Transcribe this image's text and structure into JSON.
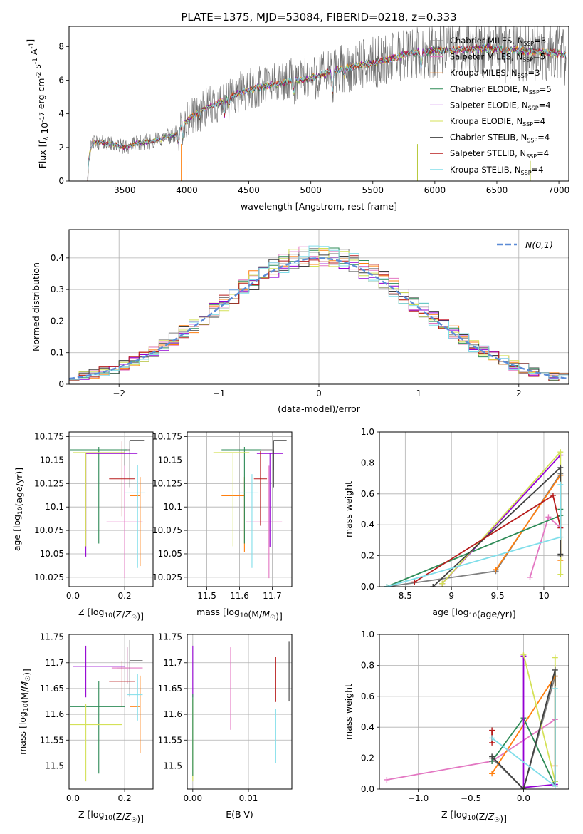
{
  "figure": {
    "title": "PLATE=1375, MJD=53084, FIBERID=0218, z=0.333"
  },
  "series_styles": [
    {
      "name": "Chabrier MILES",
      "nssp": "3",
      "color": "#7f7f7f"
    },
    {
      "name": "Salpeter MILES",
      "nssp": "5",
      "color": "#e377c2"
    },
    {
      "name": "Kroupa MILES",
      "nssp": "3",
      "color": "#ff7f0e"
    },
    {
      "name": "Chabrier ELODIE",
      "nssp": "5",
      "color": "#2e8b57"
    },
    {
      "name": "Salpeter ELODIE",
      "nssp": "4",
      "color": "#9400d3"
    },
    {
      "name": "Kroupa ELODIE",
      "nssp": "4",
      "color": "#d4e157"
    },
    {
      "name": "Chabrier STELIB",
      "nssp": "4",
      "color": "#404040"
    },
    {
      "name": "Salpeter STELIB",
      "nssp": "4",
      "color": "#b71c1c"
    },
    {
      "name": "Kroupa STELIB",
      "nssp": "4",
      "color": "#80deea"
    }
  ],
  "chart_data": [
    {
      "id": "spectrum",
      "type": "line",
      "xlabel": "wavelength [Angstrom, rest frame]",
      "ylabel": "Flux [f_λ 10^-17 erg cm^-2 s^-1 A^-1]",
      "xlim": [
        3050,
        7080
      ],
      "ylim": [
        0,
        9.2
      ],
      "xticks": [
        3500,
        4000,
        4500,
        5000,
        5500,
        6000,
        6500,
        7000
      ],
      "yticks": [
        0,
        2,
        4,
        6,
        8
      ],
      "grid": false,
      "legend": "right",
      "nodes": [
        [
          3200,
          0
        ],
        [
          3210,
          1.5
        ],
        [
          3240,
          2.3
        ],
        [
          3300,
          2.3
        ],
        [
          3400,
          2.2
        ],
        [
          3500,
          2.0
        ],
        [
          3600,
          2.25
        ],
        [
          3700,
          2.35
        ],
        [
          3800,
          2.5
        ],
        [
          3850,
          2.7
        ],
        [
          3900,
          2.7
        ],
        [
          3960,
          3.3
        ],
        [
          4050,
          3.9
        ],
        [
          4200,
          4.5
        ],
        [
          4300,
          4.8
        ],
        [
          4400,
          5.2
        ],
        [
          4600,
          5.6
        ],
        [
          4800,
          5.9
        ],
        [
          5000,
          6.1
        ],
        [
          5200,
          6.6
        ],
        [
          5400,
          6.9
        ],
        [
          5600,
          7.2
        ],
        [
          5800,
          7.6
        ],
        [
          6000,
          7.75
        ],
        [
          6200,
          7.8
        ],
        [
          6400,
          7.9
        ],
        [
          6600,
          7.8
        ],
        [
          6800,
          7.7
        ],
        [
          7000,
          7.6
        ],
        [
          7050,
          7.5
        ]
      ],
      "dips": [
        [
          3933,
          0.9
        ],
        [
          3968,
          0.7
        ],
        [
          4101,
          0.4
        ],
        [
          4304,
          0.9
        ],
        [
          4340,
          0.5
        ],
        [
          4861,
          0.7
        ],
        [
          5175,
          1.3
        ],
        [
          5270,
          0.5
        ],
        [
          5890,
          1.0
        ],
        [
          6563,
          0.6
        ]
      ],
      "observed_noise": 1.6
    },
    {
      "id": "residuals",
      "type": "histogram",
      "xlabel": "(data-model)/error",
      "ylabel": "Normed distribution",
      "xlim": [
        -2.5,
        2.5
      ],
      "ylim": [
        0,
        0.49
      ],
      "xticks": [
        -2,
        -1,
        0,
        1,
        2
      ],
      "yticks": [
        0.0,
        0.1,
        0.2,
        0.3,
        0.4
      ],
      "bin_width": 0.1,
      "grid": true,
      "legend": "top-right",
      "normal_curve": {
        "label": "N(0,1)",
        "mu": 0,
        "sigma": 1,
        "color": "#5b8bd6"
      }
    },
    {
      "id": "age_vs_Z",
      "type": "errorbar",
      "xlabel": "Z [log10(Z/Z☉)]",
      "ylabel": "age  [log10(age/yr)]",
      "xlim": [
        -0.015,
        0.31
      ],
      "ylim": [
        10.015,
        10.18
      ],
      "xticks": [
        0.0,
        0.2
      ],
      "xticklabels": [
        "0.0",
        "0.2"
      ],
      "yticks": [
        10.025,
        10.05,
        10.075,
        10.1,
        10.125,
        10.15,
        10.175
      ],
      "grid": true,
      "points": [
        {
          "series": 0,
          "x": 0.2,
          "y": 10.161,
          "xerr": [
            0.0,
            0.02
          ],
          "yerr": [
            0.022,
            0.0
          ]
        },
        {
          "series": 1,
          "x": 0.2,
          "y": 10.084,
          "xerr": [
            0.07,
            0.07
          ],
          "yerr": [
            0.06,
            0.06
          ]
        },
        {
          "series": 2,
          "x": 0.26,
          "y": 10.112,
          "xerr": [
            0.04,
            0.0
          ],
          "yerr": [
            0.075,
            0.02
          ]
        },
        {
          "series": 3,
          "x": 0.1,
          "y": 10.161,
          "xerr": [
            0.11,
            0.11
          ],
          "yerr": [
            0.1,
            0.003
          ]
        },
        {
          "series": 4,
          "x": 0.05,
          "y": 10.157,
          "xerr": [
            0.0,
            0.2
          ],
          "yerr": [
            0.11,
            0.0
          ]
        },
        {
          "series": 5,
          "x": 0.05,
          "y": 10.158,
          "xerr": [
            0.05,
            0.15
          ],
          "yerr": [
            0.1,
            0.0
          ]
        },
        {
          "series": 6,
          "x": 0.22,
          "y": 10.171,
          "xerr": [
            0.0,
            0.055
          ],
          "yerr": [
            0.05,
            0.0
          ]
        },
        {
          "series": 7,
          "x": 0.19,
          "y": 10.13,
          "xerr": [
            0.05,
            0.05
          ],
          "yerr": [
            0.04,
            0.04
          ]
        },
        {
          "series": 8,
          "x": 0.25,
          "y": 10.115,
          "xerr": [
            0.05,
            0.03
          ],
          "yerr": [
            0.08,
            0.03
          ]
        }
      ]
    },
    {
      "id": "age_vs_mass",
      "type": "errorbar",
      "xlabel": "mass [log10(M/M☉)]",
      "ylabel": "",
      "xlim": [
        11.44,
        11.76
      ],
      "ylim": [
        10.015,
        10.18
      ],
      "xticks": [
        11.5,
        11.6,
        11.7
      ],
      "yticks": [
        10.025,
        10.05,
        10.075,
        10.1,
        10.125,
        10.15,
        10.175
      ],
      "grid": true,
      "points": [
        {
          "series": 0,
          "x": 11.704,
          "y": 10.161,
          "xerr": [
            0.07,
            0.0
          ],
          "yerr": [
            0.022,
            0.0
          ]
        },
        {
          "series": 1,
          "x": 11.69,
          "y": 10.084,
          "xerr": [
            0.07,
            0.04
          ],
          "yerr": [
            0.06,
            0.06
          ]
        },
        {
          "series": 2,
          "x": 11.615,
          "y": 10.112,
          "xerr": [
            0.07,
            0.0
          ],
          "yerr": [
            0.06,
            0.02
          ]
        },
        {
          "series": 3,
          "x": 11.615,
          "y": 10.161,
          "xerr": [
            0.07,
            0.05
          ],
          "yerr": [
            0.1,
            0.003
          ]
        },
        {
          "series": 4,
          "x": 11.693,
          "y": 10.157,
          "xerr": [
            0.04,
            0.04
          ],
          "yerr": [
            0.1,
            0.0
          ]
        },
        {
          "series": 5,
          "x": 11.58,
          "y": 10.158,
          "xerr": [
            0.06,
            0.05
          ],
          "yerr": [
            0.1,
            0.0
          ]
        },
        {
          "series": 6,
          "x": 11.704,
          "y": 10.171,
          "xerr": [
            0.0,
            0.04
          ],
          "yerr": [
            0.05,
            0.0
          ]
        },
        {
          "series": 7,
          "x": 11.664,
          "y": 10.13,
          "xerr": [
            0.02,
            0.02
          ],
          "yerr": [
            0.05,
            0.03
          ]
        },
        {
          "series": 8,
          "x": 11.638,
          "y": 10.115,
          "xerr": [
            0.04,
            0.02
          ],
          "yerr": [
            0.08,
            0.02
          ]
        }
      ]
    },
    {
      "id": "weight_vs_age",
      "type": "line",
      "xlabel": "age  [log10(age/yr)]",
      "ylabel": "mass weight",
      "xlim": [
        8.22,
        10.27
      ],
      "ylim": [
        0,
        1.0
      ],
      "xticks": [
        8.5,
        9.0,
        9.5,
        10.0
      ],
      "yticks": [
        0.0,
        0.2,
        0.4,
        0.6,
        0.8,
        1.0
      ],
      "grid": true,
      "lines": [
        {
          "series": 0,
          "points": [
            [
              8.3,
              0.0
            ],
            [
              9.48,
              0.1
            ],
            [
              10.18,
              0.73
            ],
            [
              10.18,
              0.2
            ]
          ]
        },
        {
          "series": 1,
          "points": [
            [
              9.85,
              0.06
            ],
            [
              10.05,
              0.45
            ],
            [
              10.18,
              0.38
            ]
          ]
        },
        {
          "series": 2,
          "points": [
            [
              9.48,
              0.11
            ],
            [
              10.18,
              0.72
            ],
            [
              10.18,
              0.17
            ]
          ]
        },
        {
          "series": 3,
          "points": [
            [
              8.3,
              0.0
            ],
            [
              10.18,
              0.46
            ],
            [
              10.18,
              0.5
            ]
          ]
        },
        {
          "series": 4,
          "points": [
            [
              8.9,
              0.02
            ],
            [
              10.18,
              0.85
            ]
          ]
        },
        {
          "series": 5,
          "points": [
            [
              8.9,
              0.02
            ],
            [
              10.18,
              0.87
            ],
            [
              10.18,
              0.08
            ]
          ]
        },
        {
          "series": 6,
          "points": [
            [
              8.8,
              0.0
            ],
            [
              10.18,
              0.77
            ],
            [
              10.18,
              0.21
            ]
          ]
        },
        {
          "series": 7,
          "points": [
            [
              8.6,
              0.03
            ],
            [
              10.1,
              0.59
            ],
            [
              10.18,
              0.38
            ]
          ]
        },
        {
          "series": 8,
          "points": [
            [
              8.3,
              0.0
            ],
            [
              10.18,
              0.32
            ],
            [
              10.18,
              0.66
            ]
          ]
        }
      ]
    },
    {
      "id": "mass_vs_Z",
      "type": "errorbar",
      "xlabel": "Z [log10(Z/Z☉)]",
      "ylabel": "mass [log10(M/M☉)]",
      "xlim": [
        -0.015,
        0.31
      ],
      "ylim": [
        11.455,
        11.755
      ],
      "xticks": [
        0.0,
        0.2
      ],
      "xticklabels": [
        "0.0",
        "0.2"
      ],
      "yticks": [
        11.5,
        11.55,
        11.6,
        11.65,
        11.7,
        11.75
      ],
      "grid": true,
      "points": [
        {
          "series": 0,
          "x": 0.21,
          "y": 11.69,
          "xerr": [
            0.04,
            0.0
          ],
          "yerr": [
            0.03,
            0.04
          ]
        },
        {
          "series": 1,
          "x": 0.21,
          "y": 11.69,
          "xerr": [
            0.06,
            0.06
          ],
          "yerr": [
            0.03,
            0.04
          ]
        },
        {
          "series": 2,
          "x": 0.26,
          "y": 11.615,
          "xerr": [
            0.04,
            0.0
          ],
          "yerr": [
            0.09,
            0.06
          ]
        },
        {
          "series": 3,
          "x": 0.1,
          "y": 11.615,
          "xerr": [
            0.11,
            0.1
          ],
          "yerr": [
            0.13,
            0.05
          ]
        },
        {
          "series": 4,
          "x": 0.05,
          "y": 11.693,
          "xerr": [
            0.05,
            0.15
          ],
          "yerr": [
            0.06,
            0.04
          ]
        },
        {
          "series": 5,
          "x": 0.05,
          "y": 11.58,
          "xerr": [
            0.06,
            0.14
          ],
          "yerr": [
            0.11,
            0.04
          ]
        },
        {
          "series": 6,
          "x": 0.22,
          "y": 11.704,
          "xerr": [
            0.0,
            0.05
          ],
          "yerr": [
            0.07,
            0.04
          ]
        },
        {
          "series": 7,
          "x": 0.19,
          "y": 11.664,
          "xerr": [
            0.05,
            0.05
          ],
          "yerr": [
            0.05,
            0.04
          ]
        },
        {
          "series": 8,
          "x": 0.25,
          "y": 11.638,
          "xerr": [
            0.04,
            0.02
          ],
          "yerr": [
            0.05,
            0.04
          ]
        }
      ]
    },
    {
      "id": "mass_vs_ebv",
      "type": "errorbar",
      "xlabel": "E(B-V)",
      "ylabel": "",
      "xlim": [
        -0.001,
        0.0178
      ],
      "ylim": [
        11.455,
        11.755
      ],
      "xticks": [
        0.0,
        0.01
      ],
      "xticklabels": [
        "0.00",
        "0.01"
      ],
      "yticks": [
        11.5,
        11.55,
        11.6,
        11.65,
        11.7,
        11.75
      ],
      "grid": true,
      "points": [
        {
          "series": 4,
          "x": 0.0,
          "y": 11.693,
          "xerr": [
            0,
            0
          ],
          "yerr": [
            0.06,
            0.04
          ]
        },
        {
          "series": 5,
          "x": 0.0,
          "y": 11.58,
          "xerr": [
            0,
            0
          ],
          "yerr": [
            0.11,
            0.05
          ]
        },
        {
          "series": 3,
          "x": 0.0,
          "y": 11.6,
          "xerr": [
            0,
            0
          ],
          "yerr": [
            0.12,
            0.04
          ]
        },
        {
          "series": 1,
          "x": 0.0068,
          "y": 11.65,
          "xerr": [
            0,
            0
          ],
          "yerr": [
            0.08,
            0.08
          ]
        },
        {
          "series": 7,
          "x": 0.0149,
          "y": 11.664,
          "xerr": [
            0,
            0
          ],
          "yerr": [
            0.04,
            0.047
          ]
        },
        {
          "series": 8,
          "x": 0.0149,
          "y": 11.56,
          "xerr": [
            0,
            0
          ],
          "yerr": [
            0.055,
            0.05
          ]
        },
        {
          "series": 6,
          "x": 0.0173,
          "y": 11.685,
          "xerr": [
            0,
            0
          ],
          "yerr": [
            0.06,
            0.057
          ]
        }
      ]
    },
    {
      "id": "weight_vs_Z",
      "type": "line",
      "xlabel": "Z [log10(Z/Z☉)]",
      "ylabel": "mass weight",
      "xlim": [
        -1.37,
        0.43
      ],
      "ylim": [
        0,
        1.0
      ],
      "xticks": [
        -1.0,
        -0.5,
        0.0
      ],
      "xticklabels": [
        "−1.0",
        "−0.5",
        "0.0"
      ],
      "yticks": [
        0.0,
        0.2,
        0.4,
        0.6,
        0.8,
        1.0
      ],
      "grid": true,
      "lines": [
        {
          "series": 0,
          "points": [
            [
              -0.3,
              0.2
            ],
            [
              0.0,
              0.0
            ],
            [
              0.3,
              0.73
            ]
          ]
        },
        {
          "series": 1,
          "points": [
            [
              -1.3,
              0.06
            ],
            [
              -0.3,
              0.18
            ],
            [
              0.3,
              0.45
            ]
          ]
        },
        {
          "series": 2,
          "points": [
            [
              -0.3,
              0.1
            ],
            [
              0.3,
              0.73
            ],
            [
              0.3,
              0.15
            ]
          ]
        },
        {
          "series": 3,
          "points": [
            [
              -0.3,
              0.18
            ],
            [
              0.0,
              0.46
            ],
            [
              0.3,
              0.02
            ],
            [
              0.3,
              0.05
            ]
          ]
        },
        {
          "series": 4,
          "points": [
            [
              0.0,
              0.86
            ],
            [
              0.0,
              0.01
            ],
            [
              0.3,
              0.03
            ]
          ]
        },
        {
          "series": 5,
          "points": [
            [
              0.0,
              0.87
            ],
            [
              0.3,
              0.05
            ],
            [
              0.3,
              0.85
            ]
          ]
        },
        {
          "series": 6,
          "points": [
            [
              -0.3,
              0.21
            ],
            [
              0.0,
              0.0
            ],
            [
              0.3,
              0.77
            ],
            [
              0.3,
              0.02
            ]
          ]
        },
        {
          "series": 7,
          "points": [
            [
              -0.3,
              0.38
            ],
            [
              -0.3,
              0.3
            ]
          ]
        },
        {
          "series": 8,
          "points": [
            [
              -0.3,
              0.33
            ],
            [
              0.3,
              0.02
            ],
            [
              0.3,
              0.65
            ]
          ]
        }
      ]
    }
  ]
}
